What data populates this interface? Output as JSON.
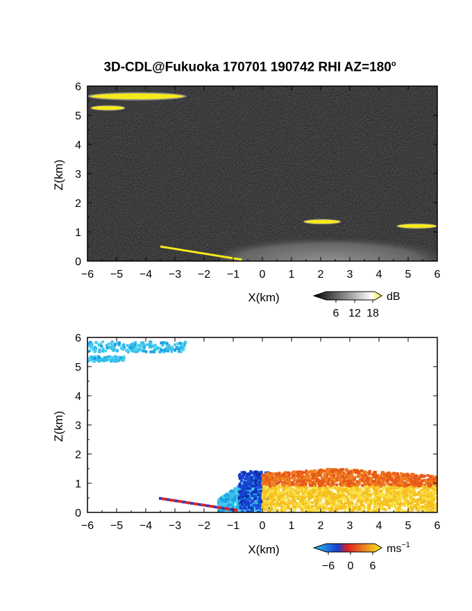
{
  "title": {
    "main": "3D-CDL@Fukuoka 170701 190742 RHI AZ=180",
    "degree_sup": "o"
  },
  "chart_data": [
    {
      "type": "heatmap",
      "panel": "top",
      "quantity": "SNR",
      "xlabel": "X(km)",
      "ylabel": "Z(km)",
      "xlim": [
        -6,
        6
      ],
      "ylim": [
        0,
        6
      ],
      "xticks": [
        -6,
        -5,
        -4,
        -3,
        -2,
        -1,
        0,
        1,
        2,
        3,
        4,
        5,
        6
      ],
      "yticks": [
        0,
        1,
        2,
        3,
        4,
        5,
        6
      ],
      "colorbar": {
        "unit": "dB",
        "ticks": [
          6,
          12,
          18
        ],
        "colors": [
          "#000000",
          "#ffffff",
          "#f6ea1c"
        ]
      },
      "features": [
        {
          "feature": "elevated cloud layer",
          "x_range": [
            -6.0,
            -2.6
          ],
          "z": 5.65,
          "color": "#f6ea1c"
        },
        {
          "feature": "elevated cloud layer",
          "x_range": [
            -5.9,
            -4.7
          ],
          "z": 5.25,
          "color": "#f6ea1c"
        },
        {
          "feature": "boundary layer echo",
          "x_range": [
            -1.5,
            6.0
          ],
          "z_range": [
            0.0,
            1.4
          ],
          "color": "#9a9a9a"
        },
        {
          "feature": "strong echo",
          "x_range": [
            1.4,
            2.7
          ],
          "z": 1.35,
          "color": "#f6ea1c"
        },
        {
          "feature": "strong echo",
          "x_range": [
            4.6,
            6.0
          ],
          "z": 1.2,
          "color": "#f6ea1c"
        },
        {
          "feature": "near-surface echo",
          "x_range": [
            -3.5,
            -0.7
          ],
          "z_range": [
            0.0,
            0.5
          ],
          "color": "#f6ea1c"
        }
      ]
    },
    {
      "type": "heatmap",
      "panel": "bottom",
      "quantity": "radial velocity",
      "xlabel": "X(km)",
      "ylabel": "Z(km)",
      "xlim": [
        -6,
        6
      ],
      "ylim": [
        0,
        6
      ],
      "xticks": [
        -6,
        -5,
        -4,
        -3,
        -2,
        -1,
        0,
        1,
        2,
        3,
        4,
        5,
        6
      ],
      "yticks": [
        0,
        1,
        2,
        3,
        4,
        5,
        6
      ],
      "colorbar": {
        "unit": "ms",
        "unit_sup": "-1",
        "ticks": [
          -6,
          0,
          6
        ],
        "colors": [
          "#2ec0e8",
          "#1740d0",
          "#e02020",
          "#f6ea1c"
        ]
      },
      "features": [
        {
          "feature": "cloud layer, small negative velocity",
          "x_range": [
            -6.0,
            -2.6
          ],
          "z_range": [
            5.2,
            5.9
          ],
          "color": "#40c0f0"
        },
        {
          "feature": "negative velocity (toward radar)",
          "x_range": [
            -1.5,
            0.0
          ],
          "z_range": [
            0.0,
            1.4
          ],
          "color": "#2ec0e8"
        },
        {
          "feature": "near-zero velocity",
          "x_range": [
            -0.8,
            0.3
          ],
          "z_range": [
            0.0,
            1.4
          ],
          "color": "#1740d0"
        },
        {
          "feature": "positive velocity (away from radar)",
          "x_range": [
            0.0,
            6.0
          ],
          "z_range": [
            0.0,
            1.5
          ],
          "color": "#f08020"
        }
      ]
    }
  ],
  "labels": {
    "xlabel_top": "X(km)",
    "ylabel_top": "Z(km)",
    "xlabel_bottom": "X(km)",
    "ylabel_bottom": "Z(km)",
    "cb1_unit": "dB",
    "cb1_t1": "6",
    "cb1_t2": "12",
    "cb1_t3": "18",
    "cb2_unit": "ms",
    "cb2_unit_sup": "−1",
    "cb2_t1": "−6",
    "cb2_t2": "0",
    "cb2_t3": "6"
  },
  "xtick_labels": [
    "−6",
    "−5",
    "−4",
    "−3",
    "−2",
    "−1",
    "0",
    "1",
    "2",
    "3",
    "4",
    "5",
    "6"
  ],
  "ytick_labels": [
    "0",
    "1",
    "2",
    "3",
    "4",
    "5",
    "6"
  ]
}
